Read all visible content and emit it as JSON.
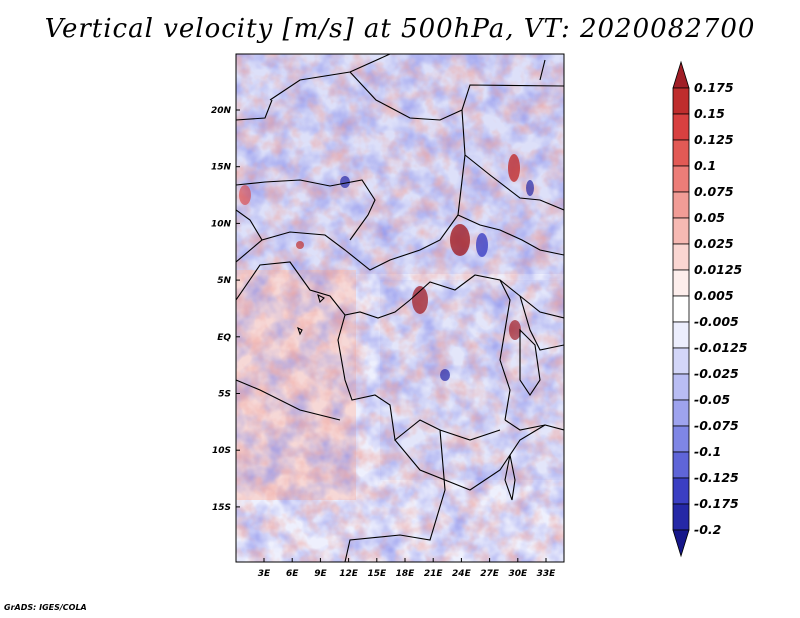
{
  "title": "Vertical velocity [m/s] at 500hPa, VT: 2020082700",
  "credit": "GrADS: IGES/COLA",
  "lat_ticks": [
    "20N",
    "15N",
    "10N",
    "5N",
    "EQ",
    "5S",
    "10S",
    "15S"
  ],
  "lon_ticks": [
    "3E",
    "6E",
    "9E",
    "12E",
    "15E",
    "18E",
    "21E",
    "24E",
    "27E",
    "30E",
    "33E"
  ],
  "colorbar": {
    "levels": [
      "0.175",
      "0.15",
      "0.125",
      "0.1",
      "0.075",
      "0.05",
      "0.025",
      "0.0125",
      "0.005",
      "-0.005",
      "-0.0125",
      "-0.025",
      "-0.05",
      "-0.075",
      "-0.1",
      "-0.125",
      "-0.175",
      "-0.2"
    ],
    "colors": [
      "#a01e26",
      "#bf2d2d",
      "#d84040",
      "#e25a55",
      "#ec7d78",
      "#f19c96",
      "#f6b9b3",
      "#fad6d2",
      "#fdeeec",
      "#ffffff",
      "#eceefd",
      "#d3d6f8",
      "#b9bdf3",
      "#9ea3ee",
      "#7f86e5",
      "#5f65d8",
      "#3b3fc3",
      "#2528a6",
      "#16178a"
    ]
  }
}
